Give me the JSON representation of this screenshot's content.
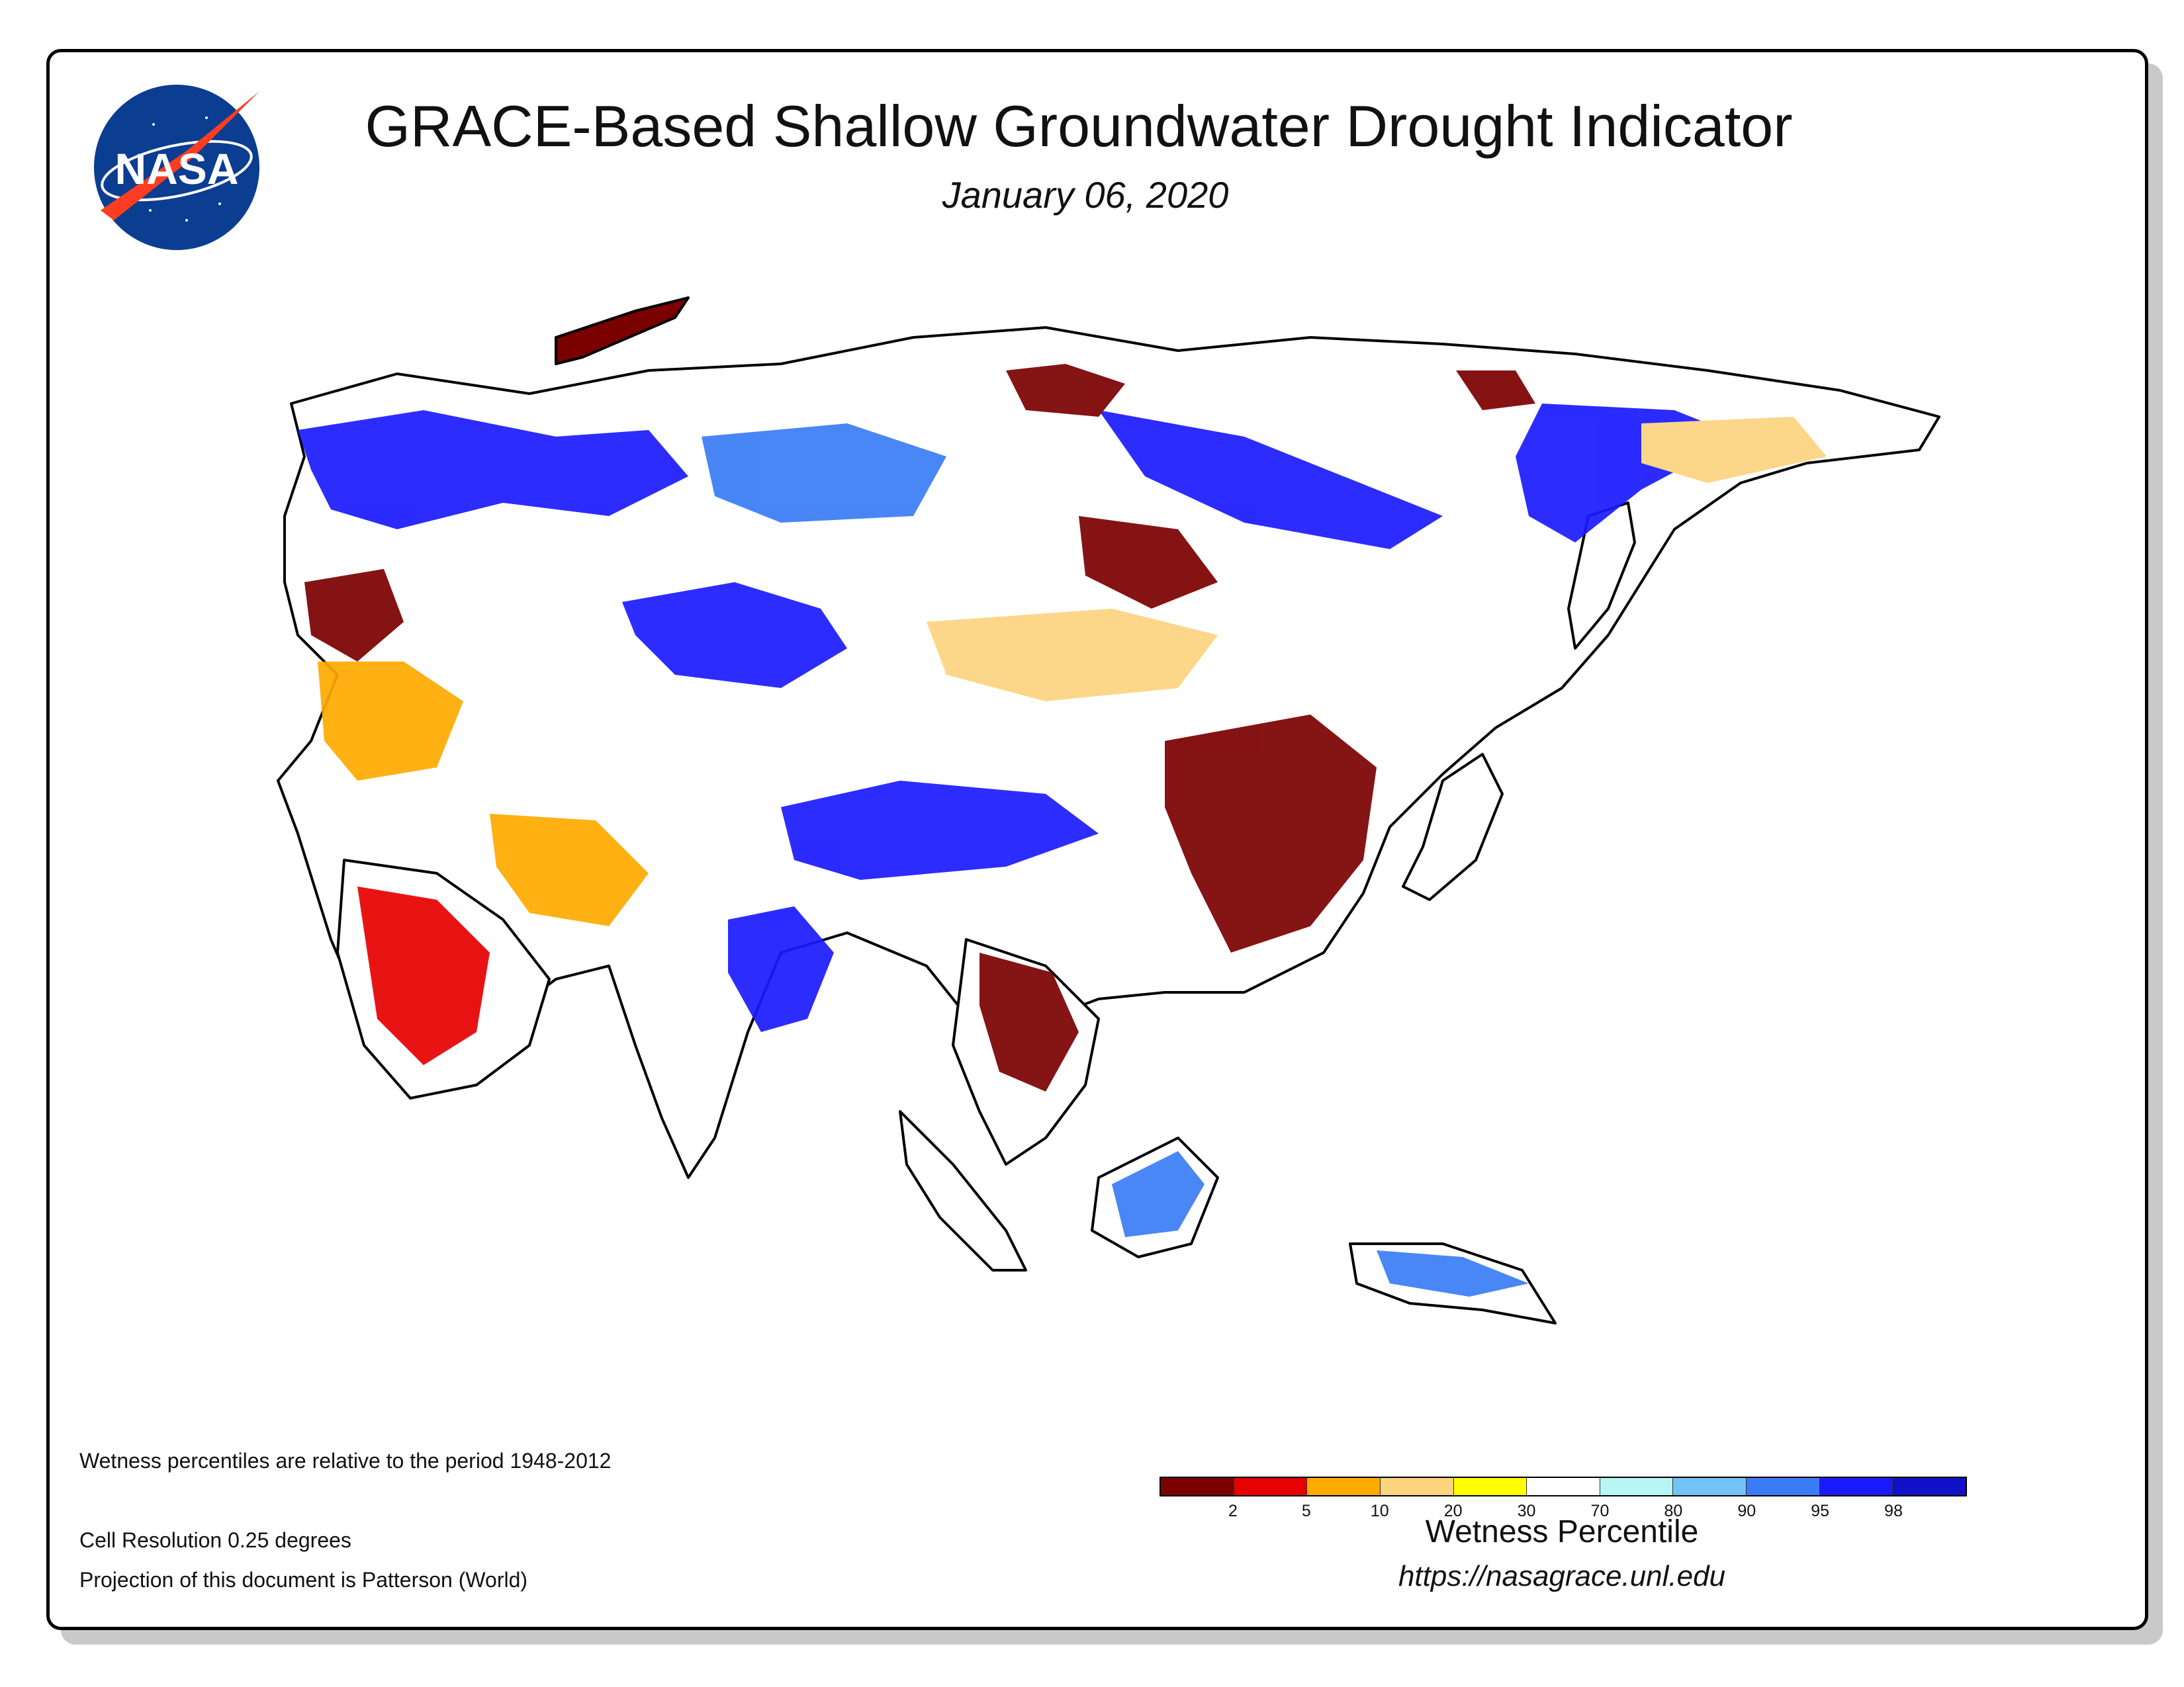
{
  "title": "GRACE-Based Shallow Groundwater Drought Indicator",
  "date": "January 06, 2020",
  "logo_text": "NASA",
  "notes": {
    "period": "Wetness percentiles are relative to the period 1948-2012",
    "resolution": "Cell Resolution 0.25 degrees",
    "projection": "Projection of this document is Patterson (World)"
  },
  "legend": {
    "title": "Wetness Percentile",
    "colors": [
      "#7b0000",
      "#e60000",
      "#ffaa00",
      "#fcd37f",
      "#ffff00",
      "#ffffff",
      "#b8f5f5",
      "#73c2f5",
      "#3a7cf5",
      "#1a1aff",
      "#1010c8"
    ],
    "tick_labels": [
      "2",
      "5",
      "10",
      "20",
      "30",
      "70",
      "80",
      "90",
      "95",
      "98"
    ]
  },
  "url": "https://nasagrace.unl.edu",
  "map": {
    "region": "Asia",
    "palette": {
      "dark_drought": "#7b0000",
      "drought": "#e60000",
      "moderate": "#ffaa00",
      "light": "#fcd37f",
      "abnormal": "#ffff00",
      "normal": "#ffffff",
      "wet_light": "#b8f5f5",
      "wet": "#73c2f5",
      "wetter": "#3a7cf5",
      "very_wet": "#1a1aff",
      "extreme_wet": "#1010c8"
    }
  }
}
